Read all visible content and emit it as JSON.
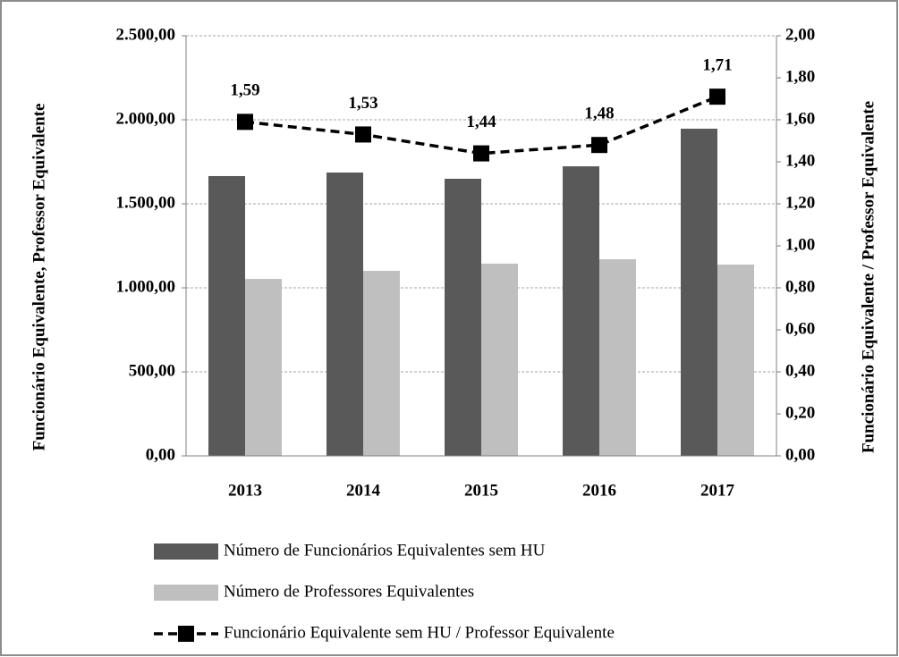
{
  "chart_data": {
    "type": "bar_line",
    "y_label": "Funcionário Equivalente, Professor Equivalente",
    "y2_label": "Funcionário Equivalente / Professor Equivalente",
    "categories": [
      "2013",
      "2014",
      "2015",
      "2016",
      "2017"
    ],
    "series": [
      {
        "name": "Número de Funcionários Equivalentes sem HU",
        "type": "bar",
        "color": "#595959",
        "values": [
          1665,
          1686,
          1649,
          1723,
          1947
        ]
      },
      {
        "name": "Número de Professores Equivalentes",
        "type": "bar",
        "color": "#bfbfbf",
        "values": [
          1053,
          1101,
          1144,
          1170,
          1138
        ]
      },
      {
        "name": "Funcionário Equivalente sem HU / Professor Equivalente",
        "type": "line",
        "axis": "y2",
        "color": "#000000",
        "values": [
          1.59,
          1.53,
          1.44,
          1.48,
          1.71
        ],
        "value_labels": [
          "1,59",
          "1,53",
          "1,44",
          "1,48",
          "1,71"
        ]
      }
    ],
    "ylim": [
      0,
      2500
    ],
    "yticks": [
      {
        "value": 0,
        "label": "0,00"
      },
      {
        "value": 500,
        "label": "500,00"
      },
      {
        "value": 1000,
        "label": "1.000,00"
      },
      {
        "value": 1500,
        "label": "1.500,00"
      },
      {
        "value": 2000,
        "label": "2.000,00"
      },
      {
        "value": 2500,
        "label": "2.500,00"
      }
    ],
    "y2lim": [
      0,
      2
    ],
    "y2ticks": [
      {
        "value": 0,
        "label": "0,00"
      },
      {
        "value": 0.2,
        "label": "0,20"
      },
      {
        "value": 0.4,
        "label": "0,40"
      },
      {
        "value": 0.6,
        "label": "0,60"
      },
      {
        "value": 0.8,
        "label": "0,80"
      },
      {
        "value": 1,
        "label": "1,00"
      },
      {
        "value": 1.2,
        "label": "1,20"
      },
      {
        "value": 1.4,
        "label": "1,40"
      },
      {
        "value": 1.6,
        "label": "1,60"
      },
      {
        "value": 1.8,
        "label": "1,80"
      },
      {
        "value": 2,
        "label": "2,00"
      }
    ],
    "grid": true,
    "legend": "bottom"
  }
}
